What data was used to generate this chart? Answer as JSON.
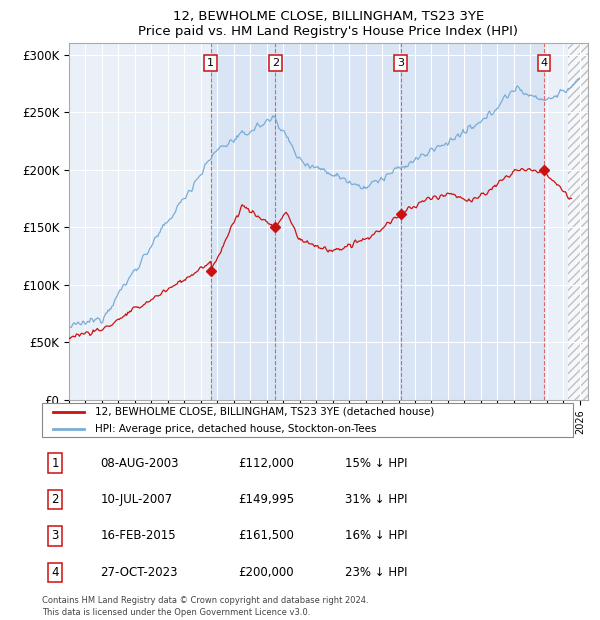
{
  "title": "12, BEWHOLME CLOSE, BILLINGHAM, TS23 3YE",
  "subtitle": "Price paid vs. HM Land Registry's House Price Index (HPI)",
  "ylim": [
    0,
    310000
  ],
  "yticks": [
    0,
    50000,
    100000,
    150000,
    200000,
    250000,
    300000
  ],
  "ytick_labels": [
    "£0",
    "£50K",
    "£100K",
    "£150K",
    "£200K",
    "£250K",
    "£300K"
  ],
  "xlim_start": 1995.0,
  "xlim_end": 2026.5,
  "hpi_color": "#7aacd6",
  "price_color": "#cc1111",
  "shade_color": "#d6e4f5",
  "sale_dates": [
    2003.6,
    2007.53,
    2015.12,
    2023.82
  ],
  "sale_prices": [
    112000,
    149995,
    161500,
    200000
  ],
  "sale_labels": [
    "1",
    "2",
    "3",
    "4"
  ],
  "sale_info": [
    {
      "label": "1",
      "date": "08-AUG-2003",
      "price": "£112,000",
      "hpi": "15% ↓ HPI"
    },
    {
      "label": "2",
      "date": "10-JUL-2007",
      "price": "£149,995",
      "hpi": "31% ↓ HPI"
    },
    {
      "label": "3",
      "date": "16-FEB-2015",
      "price": "£161,500",
      "hpi": "16% ↓ HPI"
    },
    {
      "label": "4",
      "date": "27-OCT-2023",
      "price": "£200,000",
      "hpi": "23% ↓ HPI"
    }
  ],
  "legend_line1": "12, BEWHOLME CLOSE, BILLINGHAM, TS23 3YE (detached house)",
  "legend_line2": "HPI: Average price, detached house, Stockton-on-Tees",
  "footnote": "Contains HM Land Registry data © Crown copyright and database right 2024.\nThis data is licensed under the Open Government Licence v3.0.",
  "bg_color": "#eaf0f8"
}
